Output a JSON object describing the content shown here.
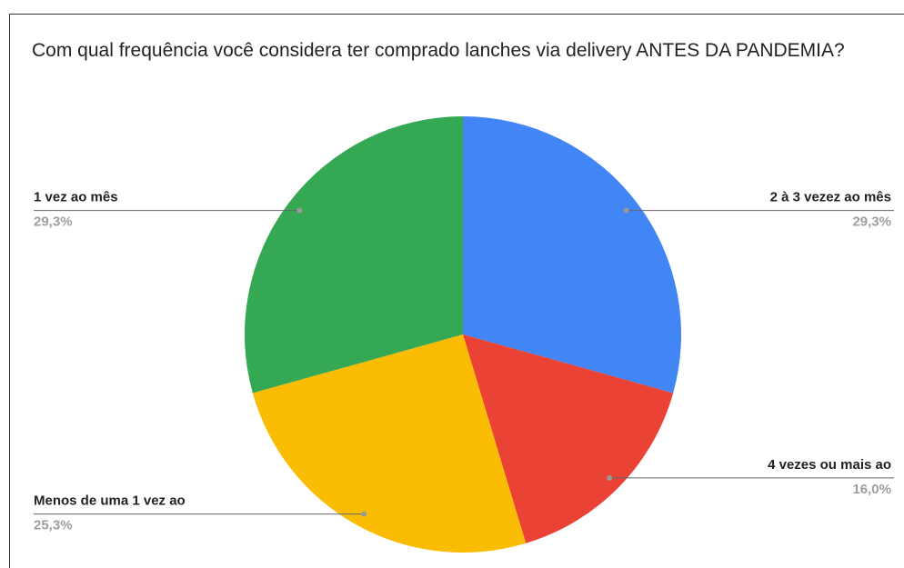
{
  "chart_data": {
    "type": "pie",
    "title": "Com qual frequência você considera ter comprado lanches via delivery ANTES DA PANDEMIA?",
    "categories": [
      "2 à 3 vezez ao mês",
      "4 vezes ou mais ao",
      "Menos de uma 1 vez ao",
      "1 vez ao mês"
    ],
    "values": [
      29.3,
      16.0,
      25.3,
      29.3
    ],
    "value_labels": [
      "29,3%",
      "16,0%",
      "25,3%",
      "29,3%"
    ],
    "colors": [
      "#4285f4",
      "#ea4335",
      "#fbbc04",
      "#34a853"
    ]
  }
}
